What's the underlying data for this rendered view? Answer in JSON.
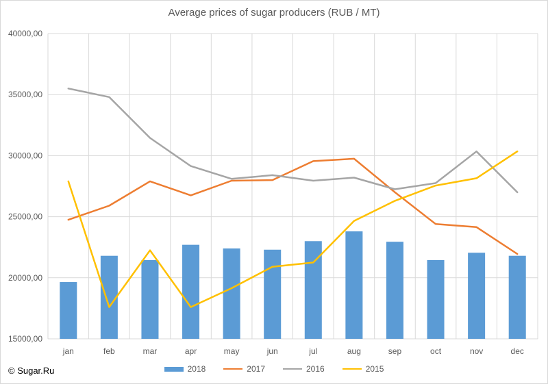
{
  "chart_data": {
    "type": "bar+line",
    "title": "Average prices of sugar producers (RUB / MT)",
    "categories": [
      "jan",
      "feb",
      "mar",
      "apr",
      "may",
      "jun",
      "jul",
      "aug",
      "sep",
      "oct",
      "nov",
      "dec"
    ],
    "ylim": [
      15000,
      40000
    ],
    "yticks": [
      15000,
      20000,
      25000,
      30000,
      35000,
      40000
    ],
    "ytick_labels": [
      "15000,00",
      "20000,00",
      "25000,00",
      "30000,00",
      "35000,00",
      "40000,00"
    ],
    "grid": "vertical and horizontal",
    "legend_position": "bottom",
    "series": [
      {
        "name": "2018",
        "type": "bar",
        "color": "#5b9bd5",
        "values": [
          19650,
          21800,
          21450,
          22700,
          22400,
          22300,
          23000,
          23800,
          22950,
          21450,
          22050,
          21800
        ]
      },
      {
        "name": "2017",
        "type": "line",
        "color": "#ed7d31",
        "values": [
          24750,
          25900,
          27900,
          26750,
          27950,
          28000,
          29550,
          29750,
          27000,
          24400,
          24150,
          21950
        ]
      },
      {
        "name": "2016",
        "type": "line",
        "color": "#a5a5a5",
        "values": [
          35500,
          34800,
          31450,
          29150,
          28100,
          28400,
          27950,
          28200,
          27250,
          27750,
          30350,
          27000
        ]
      },
      {
        "name": "2015",
        "type": "line",
        "color": "#ffc000",
        "values": [
          27900,
          17600,
          22250,
          17600,
          19150,
          20900,
          21250,
          24650,
          26300,
          27550,
          28150,
          30350
        ]
      }
    ]
  },
  "source": "© Sugar.Ru"
}
